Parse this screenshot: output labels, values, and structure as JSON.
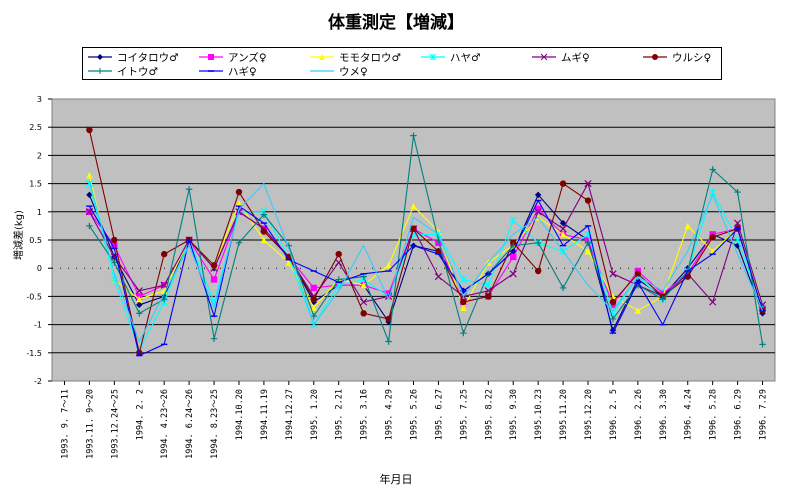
{
  "page": {
    "title": "体重測定【増減】"
  },
  "chart_data": {
    "type": "line",
    "title": "体重測定【増減】",
    "xlabel": "年月日",
    "ylabel": "増減差(kg)",
    "ylim": [
      -2,
      3
    ],
    "yticks": [
      "3",
      "2.5",
      "2",
      "1.5",
      "1",
      "0.5",
      "0",
      "-0.5",
      "-1",
      "-1.5",
      "-2"
    ],
    "grid": true,
    "legend_position": "top",
    "categories": [
      "1993. 9. 7～11",
      "1993.11. 9～20",
      "1993.12.24～25",
      "1994. 2. 2",
      "1994. 4.23～26",
      "1994. 6.24～26",
      "1994. 8.23～25",
      "1994.10.20",
      "1994.11.19",
      "1994.12.27",
      "1995. 1.20",
      "1995. 2.21",
      "1995. 3.16",
      "1995. 4.29",
      "1995. 5.26",
      "1995. 6.27",
      "1995. 7.25",
      "1995. 8.22",
      "1995. 9.30",
      "1995.10.23",
      "1995.11.20",
      "1995.12.20",
      "1996. 2. 5",
      "1996. 2.26",
      "1996. 3.30",
      "1996. 4.24",
      "1996. 5.28",
      "1996. 6.29",
      "1996. 7.29"
    ],
    "series": [
      {
        "name": "コイタロウ♂",
        "color": "#000080",
        "marker": "diamond",
        "values": [
          null,
          1.3,
          0.2,
          -0.65,
          -0.5,
          0.5,
          0.0,
          1.0,
          0.7,
          0.2,
          -0.6,
          -0.3,
          -0.3,
          -0.95,
          0.4,
          0.3,
          -0.4,
          -0.1,
          0.3,
          1.3,
          0.8,
          0.5,
          -1.1,
          -0.2,
          -0.5,
          0.0,
          0.6,
          0.4,
          -0.8
        ]
      },
      {
        "name": "アンズ♀",
        "color": "#ff00ff",
        "marker": "square",
        "values": [
          null,
          1.0,
          0.4,
          -0.5,
          -0.3,
          0.5,
          -0.2,
          1.0,
          0.7,
          0.2,
          -0.35,
          -0.3,
          -0.3,
          -0.45,
          0.7,
          0.45,
          -0.6,
          -0.5,
          0.2,
          1.05,
          0.6,
          0.5,
          -0.65,
          -0.05,
          -0.45,
          -0.1,
          0.6,
          0.7,
          -0.7
        ]
      },
      {
        "name": "モモタロウ♂",
        "color": "#ffff00",
        "marker": "triangle",
        "values": [
          null,
          1.65,
          -0.2,
          -0.55,
          -0.4,
          0.5,
          0.05,
          1.15,
          0.5,
          0.1,
          -0.7,
          -0.2,
          -0.3,
          0.05,
          1.1,
          0.65,
          -0.7,
          0.1,
          0.4,
          0.9,
          0.6,
          0.3,
          -0.5,
          -0.75,
          -0.5,
          0.75,
          0.3,
          0.7,
          -0.7
        ]
      },
      {
        "name": "ハヤ♂",
        "color": "#00ffff",
        "marker": "asterisk",
        "values": [
          null,
          1.5,
          -0.2,
          -1.45,
          -0.6,
          0.5,
          -0.6,
          1.0,
          1.0,
          0.2,
          -1.0,
          -0.3,
          -0.2,
          -0.5,
          0.6,
          0.6,
          -0.2,
          -0.3,
          0.85,
          0.45,
          0.3,
          0.6,
          -0.8,
          -0.15,
          -0.55,
          -0.05,
          1.35,
          0.5,
          -0.7
        ]
      },
      {
        "name": "ムギ♀",
        "color": "#800080",
        "marker": "x",
        "values": [
          null,
          1.0,
          0.2,
          -0.4,
          -0.3,
          0.5,
          0.0,
          1.0,
          0.7,
          0.2,
          -0.5,
          0.1,
          -0.6,
          -0.5,
          0.7,
          -0.15,
          -0.5,
          -0.4,
          -0.1,
          1.0,
          0.7,
          1.5,
          -0.1,
          -0.3,
          -0.5,
          -0.1,
          -0.6,
          0.8,
          -0.65
        ]
      },
      {
        "name": "ウルシ♀",
        "color": "#800000",
        "marker": "circle",
        "values": [
          null,
          2.45,
          0.5,
          -1.5,
          0.25,
          0.5,
          0.05,
          1.35,
          0.65,
          0.2,
          -0.55,
          0.25,
          -0.8,
          -0.9,
          0.7,
          0.3,
          -0.6,
          -0.5,
          0.45,
          -0.05,
          1.5,
          1.2,
          -0.6,
          -0.1,
          -0.5,
          -0.15,
          0.55,
          0.7,
          -0.75
        ]
      },
      {
        "name": "イトウ♂",
        "color": "#008080",
        "marker": "plus",
        "values": [
          null,
          0.75,
          0.1,
          -0.8,
          -0.55,
          1.4,
          -1.25,
          0.45,
          0.95,
          0.4,
          -0.85,
          -0.2,
          -0.15,
          -1.3,
          2.35,
          0.5,
          -1.15,
          -0.1,
          0.4,
          0.45,
          -0.35,
          0.45,
          -0.9,
          -0.3,
          -0.55,
          -0.05,
          1.75,
          1.35,
          -1.35
        ]
      },
      {
        "name": "ハギ♀",
        "color": "#0000ff",
        "marker": "dash",
        "values": [
          null,
          1.1,
          0.35,
          -1.55,
          -1.35,
          0.5,
          -0.85,
          1.1,
          0.8,
          0.15,
          -0.05,
          -0.25,
          -0.1,
          -0.05,
          0.4,
          0.25,
          -0.4,
          -0.1,
          0.3,
          1.2,
          0.4,
          0.75,
          -1.15,
          -0.25,
          -1.0,
          -0.05,
          0.25,
          0.7,
          -0.75
        ]
      },
      {
        "name": "ウメ♀",
        "color": "#33ccff",
        "marker": "none",
        "values": [
          null,
          1.55,
          -0.1,
          -1.3,
          -0.45,
          0.4,
          -0.7,
          1.05,
          1.5,
          0.35,
          -1.0,
          -0.4,
          0.4,
          -0.55,
          0.9,
          0.6,
          -0.5,
          0.1,
          0.6,
          0.9,
          0.3,
          -0.3,
          -0.75,
          -0.15,
          -0.4,
          0.3,
          1.3,
          0.25,
          -0.75
        ]
      }
    ]
  }
}
